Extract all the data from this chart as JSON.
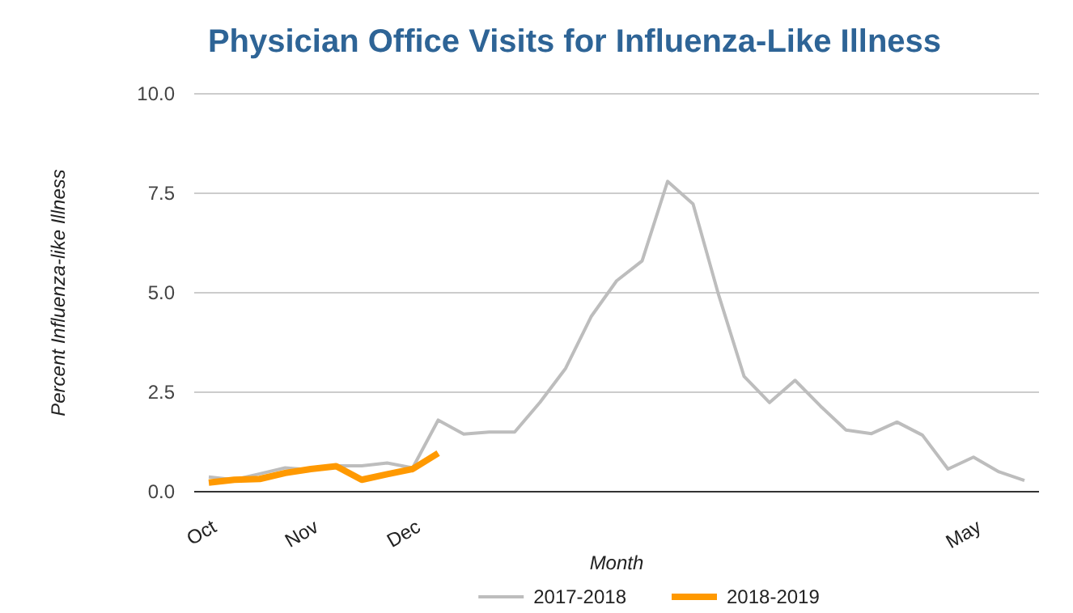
{
  "chart_data": {
    "type": "line",
    "title": "Physician Office Visits for Influenza-Like Illness",
    "xlabel": "Month",
    "ylabel": "Percent Influenza-like Illness",
    "categories": [
      "Oct",
      null,
      null,
      null,
      "Nov",
      null,
      null,
      null,
      "Dec",
      null,
      null,
      null,
      null,
      null,
      null,
      null,
      null,
      null,
      null,
      null,
      null,
      null,
      null,
      null,
      null,
      null,
      null,
      null,
      null,
      null,
      "May",
      null,
      null
    ],
    "series": [
      {
        "name": "2017-2018",
        "color": "#bdbdbd",
        "values": [
          0.37,
          0.3,
          0.45,
          0.6,
          0.55,
          0.65,
          0.65,
          0.72,
          0.6,
          1.8,
          1.45,
          1.5,
          1.5,
          2.25,
          3.1,
          4.4,
          5.3,
          5.8,
          7.8,
          7.23,
          4.95,
          2.9,
          2.24,
          2.8,
          2.15,
          1.55,
          1.46,
          1.75,
          1.42,
          0.57,
          0.87,
          0.5,
          0.28
        ]
      },
      {
        "name": "2018-2019",
        "color": "#ff9900",
        "values": [
          0.23,
          0.3,
          0.32,
          0.47,
          0.57,
          0.64,
          0.3,
          0.44,
          0.57,
          0.97,
          null,
          null,
          null,
          null,
          null,
          null,
          null,
          null,
          null,
          null,
          null,
          null,
          null,
          null,
          null,
          null,
          null,
          null,
          null,
          null,
          null,
          null,
          null
        ]
      }
    ],
    "ylim": [
      0,
      10
    ],
    "yticks": [
      {
        "value": 0,
        "label": "0.0"
      },
      {
        "value": 2.5,
        "label": "2.5"
      },
      {
        "value": 5,
        "label": "5.0"
      },
      {
        "value": 7.5,
        "label": "7.5"
      },
      {
        "value": 10,
        "label": "10.0"
      }
    ],
    "grid": "y",
    "legend": "bottom",
    "marker": "none",
    "line_style": "solid"
  }
}
